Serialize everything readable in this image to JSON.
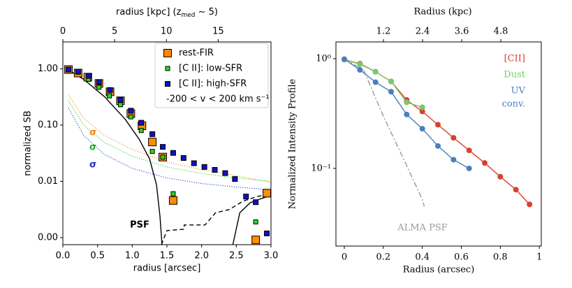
{
  "chart_data": [
    {
      "type": "scatter",
      "xlabel": "radius [arcsec]",
      "ylabel": "normalized SB",
      "x2label": "radius [kpc] (z",
      "x2label_sub": "med",
      "x2label_end": " ∼ 5)",
      "xlim": [
        0,
        3
      ],
      "xticks": [
        {
          "value": 0,
          "label": "0.0"
        },
        {
          "value": 0.5,
          "label": "0.5"
        },
        {
          "value": 1,
          "label": "1.0"
        },
        {
          "value": 1.5,
          "label": "1.5"
        },
        {
          "value": 2,
          "label": "2.0"
        },
        {
          "value": 2.5,
          "label": "2.5"
        },
        {
          "value": 3,
          "label": "3.0"
        }
      ],
      "x2lim": [
        0,
        20.1
      ],
      "x2ticks": [
        0,
        5,
        10,
        15
      ],
      "yscale": "symlog",
      "linthresh": 0.01,
      "ylim": [
        -0.00125,
        3
      ],
      "yticks": [
        {
          "value": 0,
          "label": "0.00"
        },
        {
          "value": 0.01,
          "label": "0.01"
        },
        {
          "value": 0.1,
          "label": "0.10"
        },
        {
          "value": 1,
          "label": "1.00"
        }
      ],
      "legend": "upper right",
      "legend_note": "-200 < v < 200 km s⁻¹",
      "series": [
        {
          "color": "#ff7f0e",
          "line": "dotted",
          "marker": "none",
          "x": [
            0.08,
            0.3,
            0.6,
            1.0,
            1.5,
            2.0,
            2.5,
            3.0
          ],
          "values": [
            0.345,
            0.133,
            0.065,
            0.037,
            0.022,
            0.016,
            0.0126,
            0.0098
          ]
        },
        {
          "color": "#22cc22",
          "line": "dotted",
          "marker": "none",
          "x": [
            0.08,
            0.3,
            0.6,
            1.0,
            1.5,
            2.0,
            2.5,
            3.0
          ],
          "values": [
            0.27,
            0.1,
            0.049,
            0.028,
            0.018,
            0.0138,
            0.0115,
            0.01
          ]
        },
        {
          "color": "#1f2fd0",
          "line": "dotted",
          "marker": "none",
          "x": [
            0.08,
            0.3,
            0.6,
            1.0,
            1.5,
            2.0,
            2.5,
            3.0
          ],
          "values": [
            0.205,
            0.065,
            0.03,
            0.017,
            0.0115,
            0.0096,
            0.009,
            0.0085
          ]
        },
        {
          "color": "#000000",
          "line": "solid",
          "marker": "none",
          "x": [
            0.05,
            0.3,
            0.6,
            0.9,
            1.1,
            1.25,
            1.35,
            1.4,
            1.43,
            null,
            2.45,
            2.55,
            2.7,
            2.85,
            3.0
          ],
          "values": [
            1.0,
            0.65,
            0.32,
            0.126,
            0.056,
            0.025,
            0.0094,
            0.0037,
            -0.00125,
            null,
            -0.00125,
            0.0044,
            0.0062,
            0.0069,
            0.0075
          ]
        },
        {
          "color": "#000000",
          "line": "dashed",
          "marker": "none",
          "x": [
            1.42,
            1.5,
            1.75,
            1.75,
            2.05,
            2.2,
            2.4,
            2.6,
            2.8,
            3.0
          ],
          "values": [
            -0.00125,
            0.00125,
            0.0015,
            0.00225,
            0.00225,
            0.0044,
            0.005,
            0.0065,
            0.0073,
            0.0078
          ]
        },
        {
          "name": "rest-FIR",
          "color": "#ff8c00",
          "edgecolor": "#000000",
          "line": "none",
          "marker": "square",
          "markersize": 11,
          "x": [
            0.08,
            0.22,
            0.36,
            0.52,
            0.68,
            0.83,
            0.98,
            1.14,
            1.29,
            1.44,
            1.59,
            2.78,
            2.94
          ],
          "values": [
            0.97,
            0.84,
            0.71,
            0.55,
            0.39,
            0.27,
            0.16,
            0.097,
            0.05,
            0.027,
            0.0066,
            -0.0004,
            0.0079
          ]
        },
        {
          "name": "[C II]: low-SFR",
          "color": "#22dd22",
          "edgecolor": "#000000",
          "line": "none",
          "marker": "square",
          "markersize": 6,
          "x": [
            0.08,
            0.22,
            0.37,
            0.52,
            0.67,
            0.83,
            0.98,
            1.13,
            1.29,
            1.44,
            1.59,
            2.78
          ],
          "values": [
            0.97,
            0.87,
            0.65,
            0.47,
            0.33,
            0.23,
            0.14,
            0.08,
            0.034,
            0.027,
            0.0078,
            0.0028
          ]
        },
        {
          "name": "[C II]: high-SFR",
          "color": "#1010c8",
          "edgecolor": "#000000",
          "line": "none",
          "marker": "square",
          "markersize": 7,
          "x": [
            0.08,
            0.22,
            0.37,
            0.52,
            0.68,
            0.83,
            0.98,
            1.13,
            1.29,
            1.44,
            1.59,
            1.74,
            1.89,
            2.04,
            2.19,
            2.34,
            2.48,
            2.64,
            2.78,
            2.94
          ],
          "values": [
            0.97,
            0.89,
            0.75,
            0.58,
            0.42,
            0.28,
            0.18,
            0.11,
            0.069,
            0.041,
            0.032,
            0.026,
            0.021,
            0.018,
            0.016,
            0.014,
            0.011,
            0.0073,
            0.0063,
            0.00075
          ]
        }
      ],
      "annotations": [
        {
          "text": "σ",
          "color": "#ff7f0e"
        },
        {
          "text": "σ",
          "color": "#22aa22"
        },
        {
          "text": "σ",
          "color": "#1f2fd0"
        },
        {
          "text": "PSF",
          "color": "#000000"
        }
      ]
    },
    {
      "type": "line",
      "xlabel": "Radius (arcsec)",
      "ylabel": "Normalized Intensity Profile",
      "x2label": "Radius (kpc)",
      "xlim": [
        -0.043,
        1.01
      ],
      "xticks": [
        0,
        0.2,
        0.4,
        0.6,
        0.8,
        1
      ],
      "x2lim": [
        -0.257,
        6.04
      ],
      "x2ticks": [
        1.2,
        2.4,
        3.6,
        4.8
      ],
      "yscale": "log",
      "ylim": [
        0.0196,
        1.42
      ],
      "yticks": [
        {
          "value": 1,
          "label": "10⁰"
        },
        {
          "value": 0.1,
          "label": "10⁻¹"
        }
      ],
      "legend": "upper right",
      "series": [
        {
          "color": "#999999",
          "line": "dashdot",
          "marker": "none",
          "x": [
            0,
            0.1,
            0.2,
            0.3,
            0.4,
            0.41
          ],
          "values": [
            1.0,
            0.78,
            0.3,
            0.126,
            0.052,
            0.045
          ]
        },
        {
          "name": "[CII]",
          "color": "#d9402f",
          "line": "solid",
          "marker": "circle",
          "markersize": 8,
          "x": [
            0,
            0.08,
            0.16,
            0.24,
            0.32,
            0.4,
            0.48,
            0.56,
            0.64,
            0.72,
            0.8,
            0.88,
            0.95
          ],
          "values": [
            0.98,
            0.9,
            0.76,
            0.62,
            0.42,
            0.33,
            0.25,
            0.19,
            0.146,
            0.112,
            0.084,
            0.064,
            0.047
          ]
        },
        {
          "name": "Dust",
          "color": "#77c96a",
          "line": "solid",
          "marker": "circle",
          "markersize": 8,
          "x": [
            0,
            0.08,
            0.16,
            0.24,
            0.32,
            0.4
          ],
          "values": [
            0.98,
            0.89,
            0.76,
            0.62,
            0.4,
            0.36
          ]
        },
        {
          "name": "UV",
          "color": "#4a7fc0",
          "line": "solid",
          "marker": "circle",
          "markersize": 8,
          "x": [
            0,
            0.08,
            0.16,
            0.24,
            0.32,
            0.4,
            0.48,
            0.56,
            0.64
          ],
          "values": [
            0.99,
            0.79,
            0.61,
            0.5,
            0.31,
            0.23,
            0.16,
            0.12,
            0.1
          ]
        }
      ],
      "annotations": [
        {
          "text": "conv.",
          "color": "#4a7fc0"
        },
        {
          "text": "ALMA PSF",
          "color": "#999999"
        }
      ]
    }
  ]
}
